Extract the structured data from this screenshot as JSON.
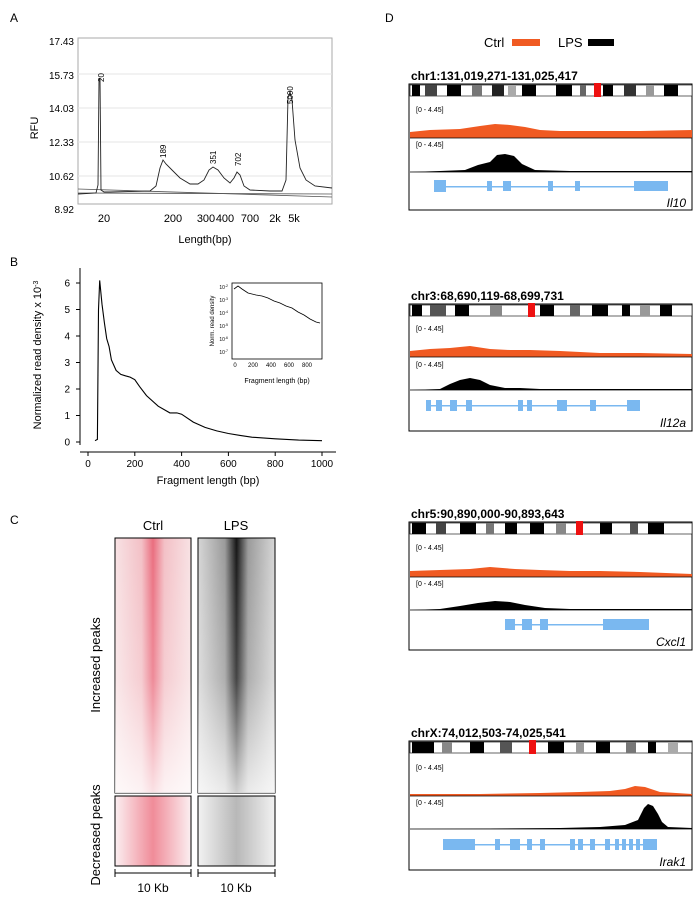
{
  "panel_labels": {
    "a": "A",
    "b": "B",
    "c": "C",
    "d": "D"
  },
  "colors": {
    "ctrl": "#f05a22",
    "lps": "#000000",
    "gene": "#7ab8f0",
    "marker": "#ee1111"
  },
  "legend": {
    "ctrl": "Ctrl",
    "lps": "LPS"
  },
  "heatmap": {
    "col_ctrl": "Ctrl",
    "col_lps": "LPS",
    "row_increased": "Increased peaks",
    "row_decreased": "Decreased peaks",
    "scale_ctrl": "10 Kb",
    "scale_lps": "10 Kb"
  },
  "tracks": [
    {
      "locus": "chr1:131,019,271-131,025,417",
      "range_ctrl": "[0 - 4.45]",
      "range_lps": "[0 - 4.45]",
      "gene": "Il10"
    },
    {
      "locus": "chr3:68,690,119-68,699,731",
      "range_ctrl": "[0 - 4.45]",
      "range_lps": "[0 - 4.45]",
      "gene": "Il12a"
    },
    {
      "locus": "chr5:90,890,000-90,893,643",
      "range_ctrl": "[0 - 4.45]",
      "range_lps": "[0 - 4.45]",
      "gene": "Cxcl1"
    },
    {
      "locus": "chrX:74,012,503-74,025,541",
      "range_ctrl": "[0 - 4.45]",
      "range_lps": "[0 - 4.45]",
      "gene": "Irak1"
    }
  ],
  "chart_data": [
    {
      "type": "line",
      "title": "",
      "xlabel": "Length(bp)",
      "ylabel": "RFU",
      "yticks": [
        "17.43",
        "15.73",
        "14.03",
        "12.33",
        "10.62",
        "8.92"
      ],
      "xticks": [
        "20",
        "200",
        "300",
        "400",
        "700",
        "2k",
        "5k"
      ],
      "peak_labels": [
        "20",
        "189",
        "351",
        "702",
        "5000"
      ]
    },
    {
      "type": "line",
      "xlabel": "Fragment length (bp)",
      "ylabel": "Normalized read density x 10",
      "ylabel_exp": "-3",
      "xlim": [
        0,
        1000
      ],
      "ylim": [
        0,
        6
      ],
      "xticks": [
        "0",
        "200",
        "400",
        "600",
        "800",
        "1000"
      ],
      "yticks": [
        "0",
        "1",
        "2",
        "3",
        "4",
        "5",
        "6"
      ],
      "x": [
        30,
        40,
        45,
        50,
        60,
        70,
        80,
        90,
        100,
        120,
        140,
        160,
        180,
        200,
        220,
        250,
        300,
        350,
        380,
        400,
        450,
        500,
        550,
        600,
        650,
        700,
        800,
        900,
        1000
      ],
      "y": [
        0.05,
        0.1,
        5.0,
        6.1,
        5.2,
        4.5,
        3.9,
        3.6,
        3.1,
        2.7,
        2.55,
        2.5,
        2.45,
        2.35,
        2.1,
        1.75,
        1.35,
        1.1,
        1.1,
        1.05,
        0.75,
        0.55,
        0.42,
        0.32,
        0.25,
        0.18,
        0.12,
        0.07,
        0.05
      ],
      "inset": {
        "xlabel": "Fragment length (bp)",
        "ylabel": "Norm. read density",
        "xticks": [
          "0",
          "200",
          "400",
          "600",
          "800"
        ],
        "yticks": [
          "10",
          "10",
          "10",
          "10",
          "10",
          "10"
        ],
        "ytick_exps": [
          "-2",
          "-3",
          "-4",
          "-5",
          "-6",
          "-7"
        ]
      }
    }
  ]
}
